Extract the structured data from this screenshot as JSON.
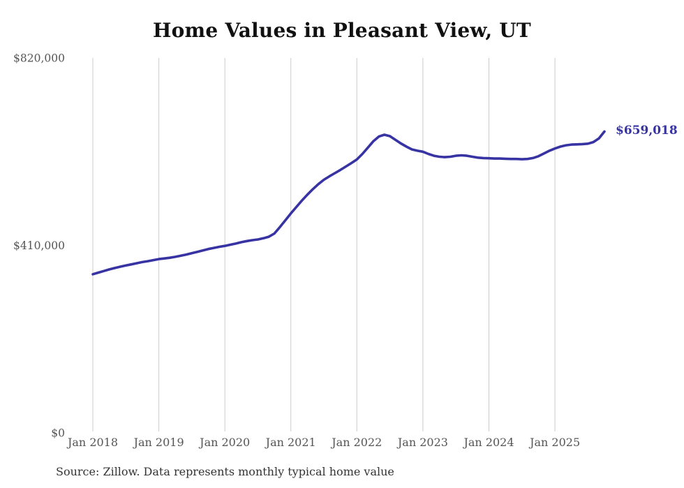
{
  "chart_data": {
    "type": "line",
    "title": "Home Values in Pleasant View, UT",
    "end_label": "$659,018",
    "source_note": "Source: Zillow. Data represents monthly typical home value",
    "legend": "none",
    "grid": "vertical-only",
    "line_color": "#3733a3",
    "grid_color": "#cccccc",
    "axis_label_color": "#555555",
    "title_color": "#111111",
    "source_color": "#333333",
    "ylim": [
      0,
      820000
    ],
    "yticks": [
      {
        "value": 0,
        "label": "$0"
      },
      {
        "value": 410000,
        "label": "$410,000"
      },
      {
        "value": 820000,
        "label": "$820,000"
      }
    ],
    "xticks": [
      "Jan 2018",
      "Jan 2019",
      "Jan 2020",
      "Jan 2021",
      "Jan 2022",
      "Jan 2023",
      "Jan 2024",
      "Jan 2025"
    ],
    "x": [
      "2018-01",
      "2018-02",
      "2018-03",
      "2018-04",
      "2018-05",
      "2018-06",
      "2018-07",
      "2018-08",
      "2018-09",
      "2018-10",
      "2018-11",
      "2018-12",
      "2019-01",
      "2019-02",
      "2019-03",
      "2019-04",
      "2019-05",
      "2019-06",
      "2019-07",
      "2019-08",
      "2019-09",
      "2019-10",
      "2019-11",
      "2019-12",
      "2020-01",
      "2020-02",
      "2020-03",
      "2020-04",
      "2020-05",
      "2020-06",
      "2020-07",
      "2020-08",
      "2020-09",
      "2020-10",
      "2020-11",
      "2020-12",
      "2021-01",
      "2021-02",
      "2021-03",
      "2021-04",
      "2021-05",
      "2021-06",
      "2021-07",
      "2021-08",
      "2021-09",
      "2021-10",
      "2021-11",
      "2021-12",
      "2022-01",
      "2022-02",
      "2022-03",
      "2022-04",
      "2022-05",
      "2022-06",
      "2022-07",
      "2022-08",
      "2022-09",
      "2022-10",
      "2022-11",
      "2022-12",
      "2023-01",
      "2023-02",
      "2023-03",
      "2023-04",
      "2023-05",
      "2023-06",
      "2023-07",
      "2023-08",
      "2023-09",
      "2023-10",
      "2023-11",
      "2023-12",
      "2024-01",
      "2024-02",
      "2024-03",
      "2024-04",
      "2024-05",
      "2024-06",
      "2024-07",
      "2024-08",
      "2024-09",
      "2024-10",
      "2024-11",
      "2024-12",
      "2025-01",
      "2025-02",
      "2025-03",
      "2025-04",
      "2025-05",
      "2025-06",
      "2025-07",
      "2025-08",
      "2025-09",
      "2025-10"
    ],
    "values": [
      347000,
      350500,
      354000,
      357500,
      360500,
      363500,
      366000,
      368500,
      371000,
      373500,
      375500,
      377800,
      380000,
      381500,
      383000,
      385000,
      387500,
      390000,
      393000,
      396000,
      399000,
      402000,
      404500,
      407000,
      409000,
      411500,
      414000,
      417000,
      419500,
      421500,
      423000,
      425500,
      429000,
      436000,
      450000,
      465000,
      480000,
      494000,
      508000,
      521000,
      533000,
      544000,
      553500,
      561000,
      568000,
      575000,
      582500,
      590000,
      598000,
      610000,
      624000,
      638000,
      648000,
      652000,
      649000,
      641000,
      633000,
      626000,
      620000,
      617000,
      615000,
      610000,
      606000,
      604000,
      603000,
      604000,
      606000,
      607000,
      606000,
      604000,
      602000,
      601000,
      600500,
      600000,
      600000,
      599500,
      599000,
      599000,
      598500,
      599000,
      601000,
      605000,
      611000,
      617000,
      622000,
      626000,
      629000,
      630500,
      631000,
      631500,
      632500,
      636000,
      644000,
      659018
    ]
  }
}
